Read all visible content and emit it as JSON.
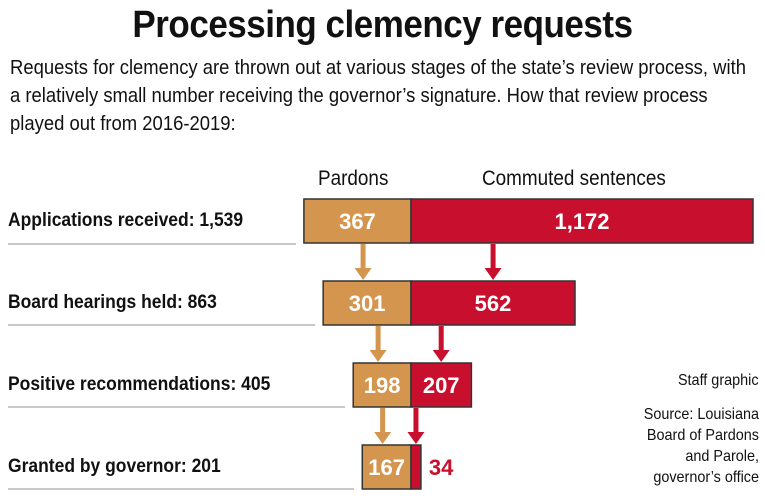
{
  "chart_data": {
    "type": "bar",
    "stacked": true,
    "orientation": "horizontal",
    "title": "Processing clemency requests",
    "subtitle": "Requests for clemency are thrown out at various stages of the state’s review process, with a relatively small number receiving the governor’s signature. How that review process played out from 2016-2019:",
    "categories": [
      "Applications received: 1,539",
      "Board hearings held: 863",
      "Positive recommendations: 405",
      "Granted by governor: 201"
    ],
    "series": [
      {
        "name": "Pardons",
        "values": [
          367,
          301,
          198,
          167
        ],
        "labels": [
          "367",
          "301",
          "198",
          "167"
        ],
        "color": "#d4964f"
      },
      {
        "name": "Commuted sentences",
        "values": [
          1172,
          562,
          207,
          34
        ],
        "labels": [
          "1,172",
          "562",
          "207",
          "34"
        ],
        "color": "#c8102e"
      }
    ],
    "credit": "Staff graphic",
    "source": "Source: Louisiana Board of Pardons and Parole, governor’s office"
  }
}
